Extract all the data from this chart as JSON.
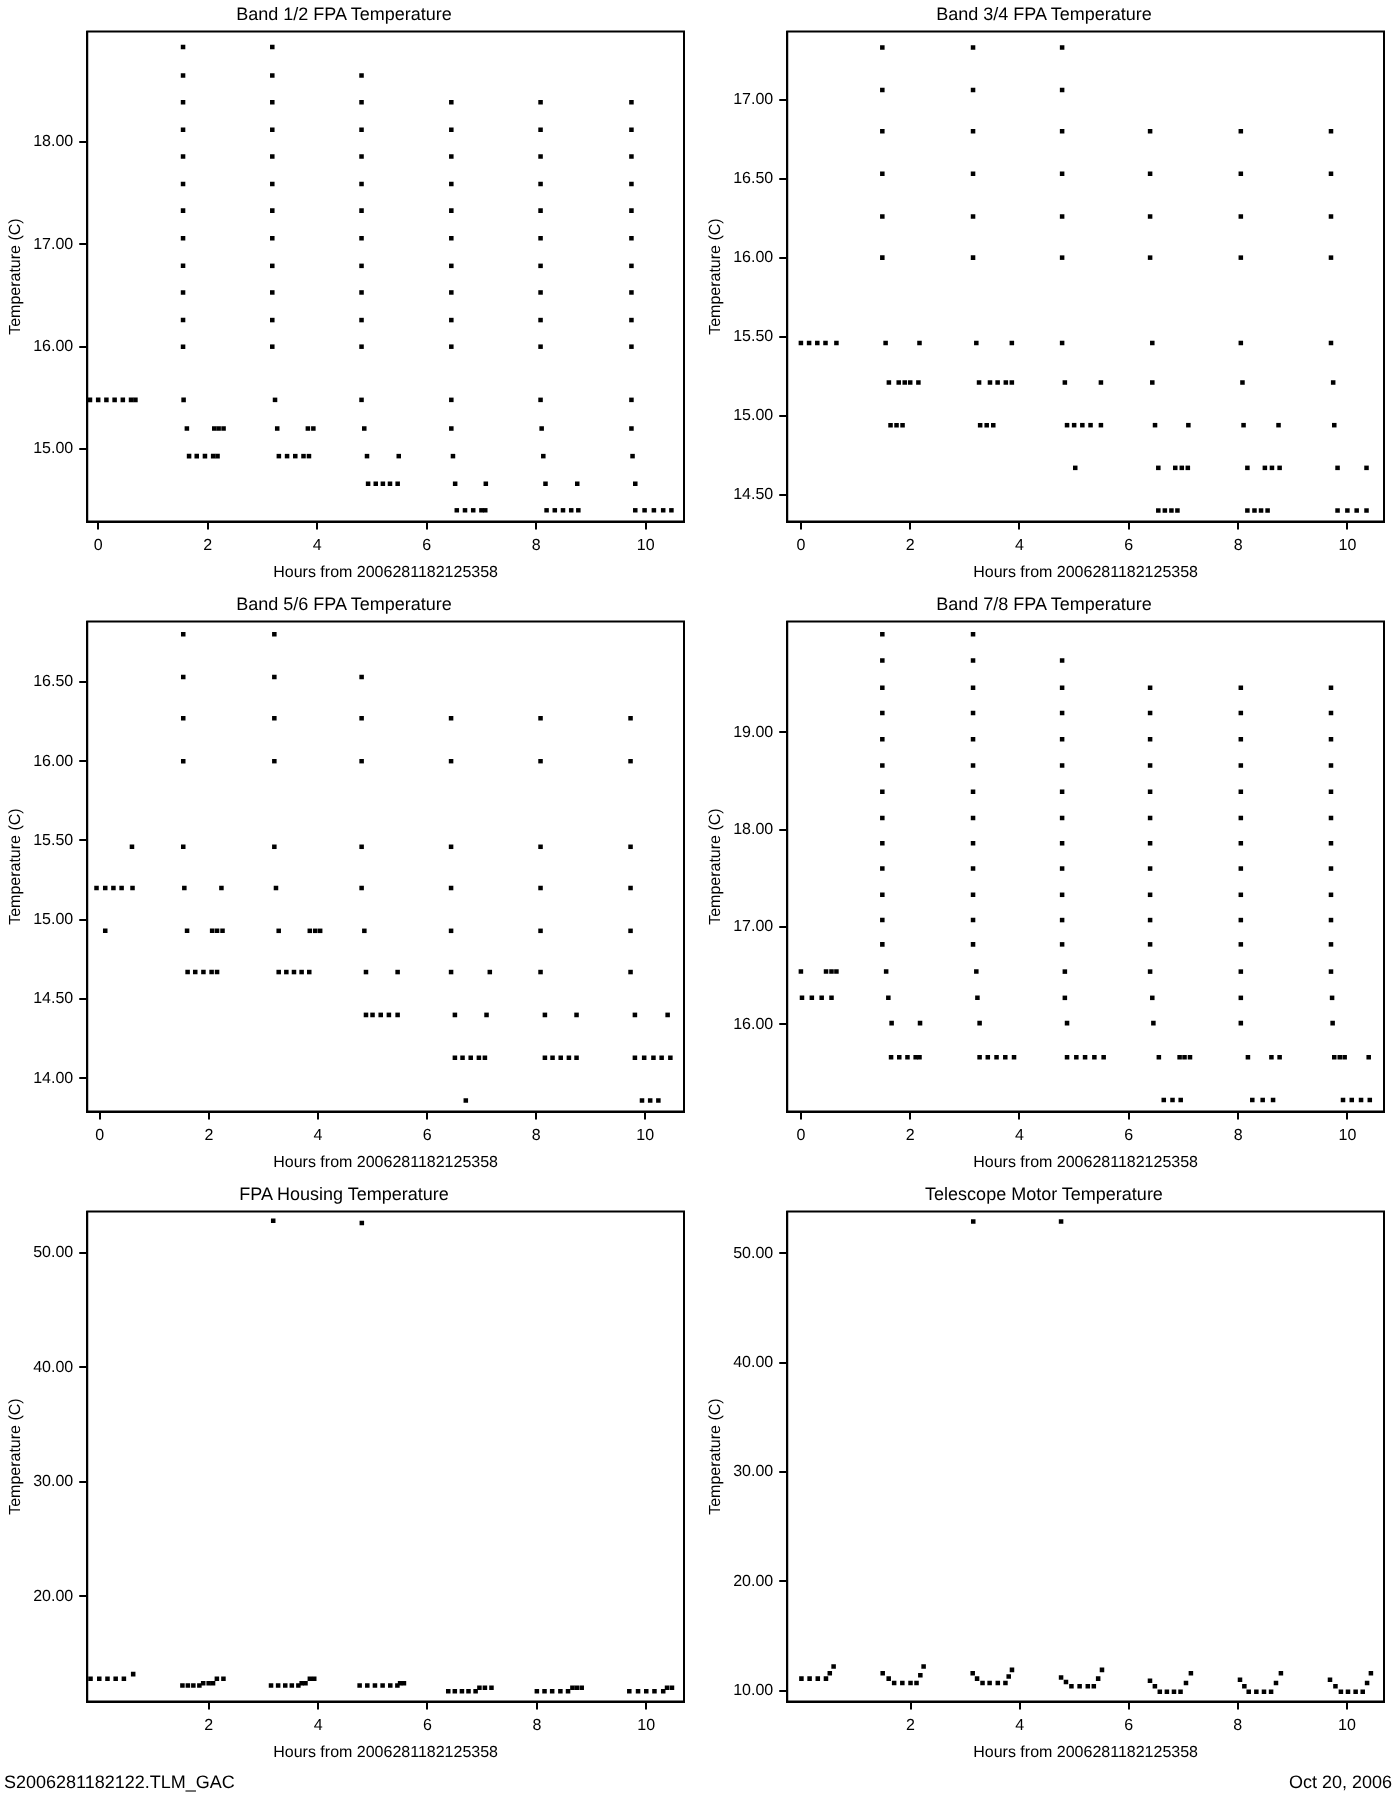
{
  "chart_data": [
    {
      "type": "scatter",
      "title": "Band 1/2 FPA Temperature",
      "xlabel": "Hours from 2006281182125358",
      "ylabel": "Temperature (C)",
      "marker": "square",
      "xlim": [
        -0.2,
        10.7
      ],
      "ylim": [
        14.29,
        19.08
      ],
      "xticks": [
        0,
        2,
        4,
        6,
        8,
        10
      ],
      "yticks": [
        {
          "value": 15,
          "label": "15.00"
        },
        {
          "value": 16,
          "label": "16.00"
        },
        {
          "value": 17,
          "label": "17.00"
        },
        {
          "value": 18,
          "label": "18.00"
        }
      ],
      "series": [
        {
          "color": "#000000",
          "x": [
            -0.15,
            0,
            0.15,
            0.3,
            0.45,
            0.6,
            0.68
          ],
          "values": [
            15.48,
            15.48,
            15.48,
            15.48,
            15.48,
            15.48,
            15.48
          ]
        },
        {
          "color": "#000000",
          "x": [
            1.55,
            1.55,
            1.55,
            1.55,
            1.55,
            1.55,
            1.55,
            1.55,
            1.55,
            1.55,
            1.55,
            1.55,
            1.56,
            1.62,
            2.12,
            2.2,
            2.29,
            1.66,
            1.8,
            1.95,
            2.1,
            2.18
          ],
          "values": [
            18.93,
            18.65,
            18.39,
            18.12,
            17.86,
            17.59,
            17.33,
            17.06,
            16.79,
            16.53,
            16.26,
            16.0,
            15.48,
            15.2,
            15.2,
            15.2,
            15.2,
            14.93,
            14.93,
            14.93,
            14.93,
            14.93
          ]
        },
        {
          "color": "#000000",
          "x": [
            3.18,
            3.18,
            3.18,
            3.18,
            3.18,
            3.18,
            3.18,
            3.18,
            3.18,
            3.18,
            3.18,
            3.18,
            3.23,
            3.27,
            3.83,
            3.93,
            3.3,
            3.45,
            3.6,
            3.75,
            3.85
          ],
          "values": [
            18.93,
            18.65,
            18.39,
            18.12,
            17.86,
            17.59,
            17.33,
            17.06,
            16.79,
            16.53,
            16.26,
            16.0,
            15.48,
            15.2,
            15.2,
            15.2,
            14.93,
            14.93,
            14.93,
            14.93,
            14.93
          ]
        },
        {
          "color": "#000000",
          "x": [
            4.81,
            4.81,
            4.81,
            4.81,
            4.81,
            4.81,
            4.81,
            4.81,
            4.81,
            4.81,
            4.81,
            4.81,
            4.86,
            4.91,
            5.49,
            4.93,
            5.07,
            5.2,
            5.33,
            5.47
          ],
          "values": [
            18.65,
            18.39,
            18.12,
            17.86,
            17.59,
            17.33,
            17.06,
            16.79,
            16.53,
            16.26,
            16.0,
            15.48,
            15.2,
            14.93,
            14.93,
            14.66,
            14.66,
            14.66,
            14.66,
            14.66
          ]
        },
        {
          "color": "#000000",
          "x": [
            6.45,
            6.45,
            6.45,
            6.45,
            6.45,
            6.45,
            6.45,
            6.45,
            6.45,
            6.45,
            6.45,
            6.45,
            6.48,
            6.52,
            7.08,
            6.55,
            6.7,
            6.85,
            7.0,
            7.07
          ],
          "values": [
            18.39,
            18.12,
            17.86,
            17.59,
            17.33,
            17.06,
            16.79,
            16.53,
            16.26,
            16.0,
            15.48,
            15.2,
            14.93,
            14.66,
            14.66,
            14.4,
            14.4,
            14.4,
            14.4,
            14.4
          ]
        },
        {
          "color": "#000000",
          "x": [
            8.08,
            8.08,
            8.08,
            8.08,
            8.08,
            8.08,
            8.08,
            8.08,
            8.08,
            8.08,
            8.08,
            8.1,
            8.13,
            8.17,
            8.75,
            8.19,
            8.34,
            8.49,
            8.64,
            8.77
          ],
          "values": [
            18.39,
            18.12,
            17.86,
            17.59,
            17.33,
            17.06,
            16.79,
            16.53,
            16.26,
            16.0,
            15.48,
            15.2,
            14.93,
            14.66,
            14.66,
            14.4,
            14.4,
            14.4,
            14.4,
            14.4
          ]
        },
        {
          "color": "#000000",
          "x": [
            9.74,
            9.74,
            9.74,
            9.74,
            9.74,
            9.74,
            9.74,
            9.74,
            9.74,
            9.74,
            9.74,
            9.74,
            9.76,
            9.81,
            9.81,
            9.98,
            10.15,
            10.32,
            10.47
          ],
          "values": [
            18.39,
            18.12,
            17.86,
            17.59,
            17.33,
            17.06,
            16.79,
            16.53,
            16.26,
            16.0,
            15.48,
            15.2,
            14.93,
            14.66,
            14.4,
            14.4,
            14.4,
            14.4,
            14.4
          ]
        }
      ]
    },
    {
      "type": "scatter",
      "title": "Band 3/4 FPA Temperature",
      "xlabel": "Hours from 2006281182125358",
      "ylabel": "Temperature (C)",
      "marker": "square",
      "xlim": [
        -0.25,
        10.67
      ],
      "ylim": [
        14.33,
        17.43
      ],
      "xticks": [
        0,
        2,
        4,
        6,
        8,
        10
      ],
      "yticks": [
        {
          "value": 14.5,
          "label": "14.50"
        },
        {
          "value": 15,
          "label": "15.00"
        },
        {
          "value": 15.5,
          "label": "15.50"
        },
        {
          "value": 16,
          "label": "16.00"
        },
        {
          "value": 16.5,
          "label": "16.50"
        },
        {
          "value": 17,
          "label": "17.00"
        }
      ],
      "series": [
        {
          "color": "#000000",
          "x": [
            0,
            0.15,
            0.3,
            0.45,
            0.65
          ],
          "values": [
            15.46,
            15.46,
            15.46,
            15.46,
            15.46
          ]
        },
        {
          "color": "#000000",
          "x": [
            1.49,
            1.49,
            1.49,
            1.49,
            1.49,
            1.49,
            1.55,
            2.17,
            1.61,
            1.79,
            1.9,
            2.0,
            2.15,
            1.64,
            1.75,
            1.86
          ],
          "values": [
            17.33,
            17.06,
            16.8,
            16.53,
            16.26,
            16.0,
            15.46,
            15.46,
            15.21,
            15.21,
            15.21,
            15.21,
            15.21,
            14.94,
            14.94,
            14.94
          ]
        },
        {
          "color": "#000000",
          "x": [
            3.15,
            3.15,
            3.15,
            3.15,
            3.15,
            3.15,
            3.21,
            3.86,
            3.26,
            3.46,
            3.6,
            3.75,
            3.86,
            3.28,
            3.4,
            3.52
          ],
          "values": [
            17.33,
            17.06,
            16.8,
            16.53,
            16.26,
            16.0,
            15.46,
            15.46,
            15.21,
            15.21,
            15.21,
            15.21,
            15.21,
            14.94,
            14.94,
            14.94
          ]
        },
        {
          "color": "#000000",
          "x": [
            4.78,
            4.78,
            4.78,
            4.78,
            4.78,
            4.78,
            4.78,
            4.83,
            5.49,
            4.87,
            5.0,
            5.15,
            5.3,
            5.49,
            5.02
          ],
          "values": [
            17.33,
            17.06,
            16.8,
            16.53,
            16.26,
            16.0,
            15.46,
            15.21,
            15.21,
            14.94,
            14.94,
            14.94,
            14.94,
            14.94,
            14.67
          ]
        },
        {
          "color": "#000000",
          "x": [
            6.39,
            6.39,
            6.39,
            6.39,
            6.43,
            6.43,
            6.48,
            7.09,
            6.54,
            6.85,
            6.97,
            7.08,
            6.54,
            6.66,
            6.78,
            6.89
          ],
          "values": [
            16.8,
            16.53,
            16.26,
            16.0,
            15.46,
            15.21,
            14.94,
            14.94,
            14.67,
            14.67,
            14.67,
            14.67,
            14.4,
            14.4,
            14.4,
            14.4
          ]
        },
        {
          "color": "#000000",
          "x": [
            8.05,
            8.05,
            8.05,
            8.05,
            8.05,
            8.08,
            8.1,
            8.74,
            8.17,
            8.49,
            8.62,
            8.76,
            8.17,
            8.3,
            8.42,
            8.54
          ],
          "values": [
            16.8,
            16.53,
            16.26,
            16.0,
            15.46,
            15.21,
            14.94,
            14.94,
            14.67,
            14.67,
            14.67,
            14.67,
            14.4,
            14.4,
            14.4,
            14.4
          ]
        },
        {
          "color": "#000000",
          "x": [
            9.7,
            9.7,
            9.7,
            9.7,
            9.7,
            9.74,
            9.76,
            9.82,
            10.35,
            9.82,
            10.0,
            10.17,
            10.35
          ],
          "values": [
            16.8,
            16.53,
            16.26,
            16.0,
            15.46,
            15.21,
            14.94,
            14.67,
            14.67,
            14.4,
            14.4,
            14.4,
            14.4
          ]
        }
      ]
    },
    {
      "type": "scatter",
      "title": "Band 5/6 FPA Temperature",
      "xlabel": "Hours from 2006281182125358",
      "ylabel": "Temperature (C)",
      "marker": "square",
      "xlim": [
        -0.23,
        10.71
      ],
      "ylim": [
        13.79,
        16.88
      ],
      "xticks": [
        0,
        2,
        4,
        6,
        8,
        10
      ],
      "yticks": [
        {
          "value": 14,
          "label": "14.00"
        },
        {
          "value": 14.5,
          "label": "14.50"
        },
        {
          "value": 15,
          "label": "15.00"
        },
        {
          "value": 15.5,
          "label": "15.50"
        },
        {
          "value": 16,
          "label": "16.00"
        },
        {
          "value": 16.5,
          "label": "16.50"
        }
      ],
      "series": [
        {
          "color": "#000000",
          "x": [
            -0.06,
            0.1,
            0.25,
            0.4,
            0.6,
            0.1,
            0.59
          ],
          "values": [
            15.2,
            15.2,
            15.2,
            15.2,
            15.2,
            14.93,
            15.46
          ]
        },
        {
          "color": "#000000",
          "x": [
            1.53,
            1.53,
            1.53,
            1.53,
            1.53,
            1.55,
            2.23,
            1.6,
            2.06,
            2.15,
            2.25,
            1.61,
            1.75,
            1.9,
            2.05,
            2.15
          ],
          "values": [
            16.8,
            16.53,
            16.27,
            16.0,
            15.46,
            15.2,
            15.2,
            14.93,
            14.93,
            14.93,
            14.93,
            14.67,
            14.67,
            14.67,
            14.67,
            14.67
          ]
        },
        {
          "color": "#000000",
          "x": [
            3.2,
            3.2,
            3.2,
            3.2,
            3.2,
            3.23,
            3.28,
            3.85,
            3.95,
            4.04,
            3.28,
            3.42,
            3.56,
            3.7,
            3.84
          ],
          "values": [
            16.8,
            16.53,
            16.27,
            16.0,
            15.46,
            15.2,
            14.93,
            14.93,
            14.93,
            14.93,
            14.67,
            14.67,
            14.67,
            14.67,
            14.67
          ]
        },
        {
          "color": "#000000",
          "x": [
            4.8,
            4.8,
            4.8,
            4.8,
            4.8,
            4.85,
            4.88,
            5.46,
            4.88,
            5.0,
            5.15,
            5.3,
            5.46
          ],
          "values": [
            16.53,
            16.27,
            16.0,
            15.46,
            15.2,
            14.93,
            14.67,
            14.67,
            14.4,
            14.4,
            14.4,
            14.4,
            14.4
          ]
        },
        {
          "color": "#000000",
          "x": [
            6.44,
            6.44,
            6.44,
            6.44,
            6.44,
            6.44,
            7.15,
            6.51,
            7.09,
            6.51,
            6.65,
            6.8,
            6.95,
            7.06,
            6.71
          ],
          "values": [
            16.27,
            16.0,
            15.46,
            15.2,
            14.93,
            14.67,
            14.67,
            14.4,
            14.4,
            14.13,
            14.13,
            14.13,
            14.13,
            14.13,
            13.86
          ]
        },
        {
          "color": "#000000",
          "x": [
            8.08,
            8.08,
            8.08,
            8.08,
            8.08,
            8.08,
            8.16,
            8.74,
            8.16,
            8.3,
            8.45,
            8.6,
            8.74
          ],
          "values": [
            16.27,
            16.0,
            15.46,
            15.2,
            14.93,
            14.67,
            14.4,
            14.4,
            14.13,
            14.13,
            14.13,
            14.13,
            14.13
          ]
        },
        {
          "color": "#000000",
          "x": [
            9.73,
            9.73,
            9.73,
            9.73,
            9.73,
            9.73,
            9.81,
            10.41,
            9.81,
            9.98,
            10.15,
            10.3,
            10.46,
            9.94,
            10.09,
            10.24
          ],
          "values": [
            16.27,
            16.0,
            15.46,
            15.2,
            14.93,
            14.67,
            14.4,
            14.4,
            14.13,
            14.13,
            14.13,
            14.13,
            14.13,
            13.86,
            13.86,
            13.86
          ]
        }
      ]
    },
    {
      "type": "scatter",
      "title": "Band 7/8 FPA Temperature",
      "xlabel": "Hours from 2006281182125358",
      "ylabel": "Temperature (C)",
      "marker": "square",
      "xlim": [
        -0.25,
        10.67
      ],
      "ylim": [
        15.1,
        20.14
      ],
      "xticks": [
        0,
        2,
        4,
        6,
        8,
        10
      ],
      "yticks": [
        {
          "value": 16,
          "label": "16.00"
        },
        {
          "value": 17,
          "label": "17.00"
        },
        {
          "value": 18,
          "label": "18.00"
        },
        {
          "value": 19,
          "label": "19.00"
        }
      ],
      "series": [
        {
          "color": "#000000",
          "x": [
            0.0,
            0.46,
            0.56,
            0.65,
            0.02,
            0.2,
            0.38,
            0.56
          ],
          "values": [
            16.54,
            16.54,
            16.54,
            16.54,
            16.27,
            16.27,
            16.27,
            16.27
          ]
        },
        {
          "color": "#000000",
          "x": [
            1.49,
            1.49,
            1.49,
            1.49,
            1.49,
            1.49,
            1.49,
            1.49,
            1.49,
            1.49,
            1.49,
            1.49,
            1.49,
            1.56,
            1.6,
            1.66,
            2.18,
            1.65,
            1.8,
            1.95,
            2.1,
            2.17
          ],
          "values": [
            20.01,
            19.74,
            19.46,
            19.2,
            18.93,
            18.66,
            18.39,
            18.12,
            17.86,
            17.6,
            17.33,
            17.07,
            16.82,
            16.54,
            16.27,
            16.01,
            16.01,
            15.66,
            15.66,
            15.66,
            15.66,
            15.66
          ]
        },
        {
          "color": "#000000",
          "x": [
            3.15,
            3.15,
            3.15,
            3.15,
            3.15,
            3.15,
            3.15,
            3.15,
            3.15,
            3.15,
            3.15,
            3.15,
            3.15,
            3.21,
            3.23,
            3.27,
            3.27,
            3.42,
            3.58,
            3.74,
            3.9
          ],
          "values": [
            20.01,
            19.74,
            19.46,
            19.2,
            18.93,
            18.66,
            18.39,
            18.12,
            17.86,
            17.6,
            17.33,
            17.07,
            16.82,
            16.54,
            16.27,
            16.01,
            15.66,
            15.66,
            15.66,
            15.66,
            15.66
          ]
        },
        {
          "color": "#000000",
          "x": [
            4.78,
            4.78,
            4.78,
            4.78,
            4.78,
            4.78,
            4.78,
            4.78,
            4.78,
            4.78,
            4.78,
            4.78,
            4.83,
            4.83,
            4.87,
            4.87,
            5.04,
            5.2,
            5.37,
            5.54
          ],
          "values": [
            19.74,
            19.46,
            19.2,
            18.93,
            18.66,
            18.39,
            18.12,
            17.86,
            17.6,
            17.33,
            17.07,
            16.82,
            16.54,
            16.27,
            16.01,
            15.66,
            15.66,
            15.66,
            15.66,
            15.66
          ]
        },
        {
          "color": "#000000",
          "x": [
            6.39,
            6.39,
            6.39,
            6.39,
            6.39,
            6.39,
            6.39,
            6.39,
            6.39,
            6.39,
            6.39,
            6.39,
            6.43,
            6.45,
            6.55,
            6.93,
            7.02,
            7.12,
            6.64,
            6.8,
            6.95
          ],
          "values": [
            19.46,
            19.2,
            18.93,
            18.66,
            18.39,
            18.12,
            17.86,
            17.6,
            17.33,
            17.07,
            16.82,
            16.54,
            16.27,
            16.01,
            15.66,
            15.66,
            15.66,
            15.66,
            15.22,
            15.22,
            15.22
          ]
        },
        {
          "color": "#000000",
          "x": [
            8.05,
            8.05,
            8.05,
            8.05,
            8.05,
            8.05,
            8.05,
            8.05,
            8.05,
            8.05,
            8.05,
            8.05,
            8.05,
            8.05,
            8.18,
            8.61,
            8.76,
            8.26,
            8.45,
            8.64
          ],
          "values": [
            19.46,
            19.2,
            18.93,
            18.66,
            18.39,
            18.12,
            17.86,
            17.6,
            17.33,
            17.07,
            16.82,
            16.54,
            16.27,
            16.01,
            15.66,
            15.66,
            15.66,
            15.22,
            15.22,
            15.22
          ]
        },
        {
          "color": "#000000",
          "x": [
            9.7,
            9.7,
            9.7,
            9.7,
            9.7,
            9.7,
            9.7,
            9.7,
            9.7,
            9.7,
            9.7,
            9.7,
            9.72,
            9.73,
            9.76,
            9.86,
            9.95,
            10.39,
            9.92,
            10.08,
            10.25,
            10.41
          ],
          "values": [
            19.46,
            19.2,
            18.93,
            18.66,
            18.39,
            18.12,
            17.86,
            17.6,
            17.33,
            17.07,
            16.82,
            16.54,
            16.27,
            16.01,
            15.66,
            15.66,
            15.66,
            15.66,
            15.22,
            15.22,
            15.22,
            15.22
          ]
        }
      ]
    },
    {
      "type": "scatter",
      "title": "FPA Housing Temperature",
      "xlabel": "Hours from 2006281182125358",
      "ylabel": "Temperature (C)",
      "marker": "square",
      "xlim": [
        -0.22,
        10.69
      ],
      "ylim": [
        10.8,
        53.6
      ],
      "xticks": [
        2,
        4,
        6,
        8,
        10
      ],
      "yticks": [
        {
          "value": 20,
          "label": "20.00"
        },
        {
          "value": 30,
          "label": "30.00"
        },
        {
          "value": 40,
          "label": "40.00"
        },
        {
          "value": 50,
          "label": "50.00"
        }
      ],
      "annotations": [
        "S2006281182122.TLM_GAC"
      ],
      "series": [
        {
          "color": "#000000",
          "x": [
            3.18,
            4.8
          ],
          "values": [
            52.8,
            52.6
          ]
        },
        {
          "color": "#000000",
          "x": [
            -0.16,
            0,
            0.15,
            0.3,
            0.45,
            0.62
          ],
          "values": [
            12.8,
            12.8,
            12.8,
            12.8,
            12.8,
            13.2
          ]
        },
        {
          "color": "#000000",
          "x": [
            1.52,
            1.62,
            1.72,
            1.83,
            1.9,
            2.0,
            2.08,
            2.15,
            2.27
          ],
          "values": [
            12.2,
            12.2,
            12.2,
            12.2,
            12.4,
            12.4,
            12.4,
            12.8,
            12.8
          ]
        },
        {
          "color": "#000000",
          "x": [
            3.14,
            3.27,
            3.4,
            3.52,
            3.64,
            3.7,
            3.77,
            3.85,
            3.93
          ],
          "values": [
            12.2,
            12.2,
            12.2,
            12.2,
            12.2,
            12.4,
            12.4,
            12.8,
            12.8
          ]
        },
        {
          "color": "#000000",
          "x": [
            4.76,
            4.9,
            5.04,
            5.18,
            5.32,
            5.45,
            5.5,
            5.57
          ],
          "values": [
            12.2,
            12.2,
            12.2,
            12.2,
            12.2,
            12.2,
            12.4,
            12.4
          ]
        },
        {
          "color": "#000000",
          "x": [
            6.38,
            6.5,
            6.63,
            6.75,
            6.88,
            6.95,
            7.05,
            7.17
          ],
          "values": [
            11.7,
            11.7,
            11.7,
            11.7,
            11.7,
            12.0,
            12.0,
            12.0
          ]
        },
        {
          "color": "#000000",
          "x": [
            8.0,
            8.14,
            8.28,
            8.43,
            8.57,
            8.65,
            8.73,
            8.82
          ],
          "values": [
            11.7,
            11.7,
            11.7,
            11.7,
            11.7,
            12.0,
            12.0,
            12.0
          ]
        },
        {
          "color": "#000000",
          "x": [
            9.69,
            9.85,
            10.0,
            10.15,
            10.31,
            10.38,
            10.47
          ],
          "values": [
            11.7,
            11.7,
            11.7,
            11.7,
            11.7,
            12.0,
            12.0
          ]
        }
      ]
    },
    {
      "type": "scatter",
      "title": "Telescope Motor Temperature",
      "xlabel": "Hours from 2006281182125358",
      "ylabel": "Temperature (C)",
      "marker": "square",
      "xlim": [
        -0.26,
        10.68
      ],
      "ylim": [
        9.0,
        53.8
      ],
      "xticks": [
        2,
        4,
        6,
        8,
        10
      ],
      "yticks": [
        {
          "value": 10,
          "label": "10.00"
        },
        {
          "value": 20,
          "label": "20.00"
        },
        {
          "value": 30,
          "label": "30.00"
        },
        {
          "value": 40,
          "label": "40.00"
        },
        {
          "value": 50,
          "label": "50.00"
        }
      ],
      "annotations": [
        "Oct 20, 2006"
      ],
      "series": [
        {
          "color": "#000000",
          "x": [
            3.15,
            4.76
          ],
          "values": [
            52.9,
            52.9
          ]
        },
        {
          "color": "#000000",
          "x": [
            0,
            0.15,
            0.3,
            0.45,
            0.52,
            0.59
          ],
          "values": [
            11.1,
            11.1,
            11.1,
            11.1,
            11.6,
            12.2
          ]
        },
        {
          "color": "#000000",
          "x": [
            1.49,
            1.6,
            1.7,
            1.85,
            2.0,
            2.11,
            2.18,
            2.24
          ],
          "values": [
            11.6,
            11.1,
            10.7,
            10.7,
            10.7,
            10.7,
            11.4,
            12.2
          ]
        },
        {
          "color": "#000000",
          "x": [
            3.14,
            3.22,
            3.32,
            3.45,
            3.6,
            3.74,
            3.8,
            3.86
          ],
          "values": [
            11.6,
            11.1,
            10.7,
            10.7,
            10.7,
            10.7,
            11.3,
            11.9
          ]
        },
        {
          "color": "#000000",
          "x": [
            4.76,
            4.85,
            4.95,
            5.1,
            5.25,
            5.36,
            5.44,
            5.51
          ],
          "values": [
            11.2,
            10.8,
            10.4,
            10.4,
            10.4,
            10.4,
            11.1,
            11.9
          ]
        },
        {
          "color": "#000000",
          "x": [
            6.39,
            6.48,
            6.57,
            6.7,
            6.83,
            6.95,
            7.05,
            7.14
          ],
          "values": [
            10.9,
            10.4,
            9.9,
            9.9,
            9.9,
            9.9,
            10.7,
            11.6
          ]
        },
        {
          "color": "#000000",
          "x": [
            8.04,
            8.12,
            8.2,
            8.34,
            8.48,
            8.61,
            8.7,
            8.79
          ],
          "values": [
            11.0,
            10.4,
            9.9,
            9.9,
            9.9,
            9.9,
            10.7,
            11.6
          ]
        },
        {
          "color": "#000000",
          "x": [
            9.69,
            9.79,
            9.89,
            10.02,
            10.16,
            10.29,
            10.37,
            10.44
          ],
          "values": [
            11.0,
            10.4,
            9.9,
            9.9,
            9.9,
            9.9,
            10.7,
            11.6
          ]
        }
      ]
    }
  ]
}
